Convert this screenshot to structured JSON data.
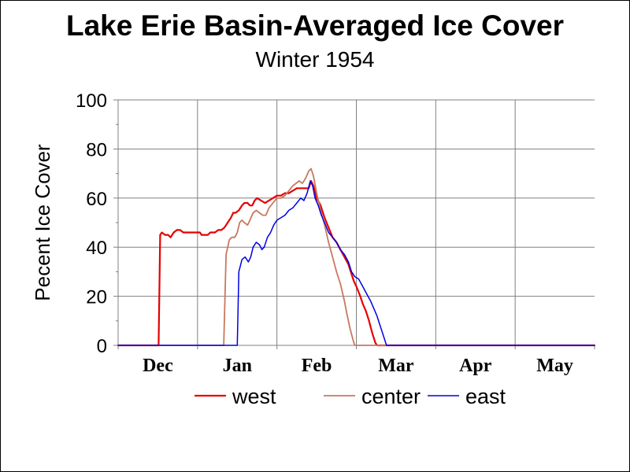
{
  "chart_data": {
    "type": "line",
    "title": "Lake Erie Basin-Averaged Ice Cover",
    "subtitle": "Winter 1954",
    "xlabel": "",
    "ylabel": "Pecent Ice Cover",
    "ylim": [
      0,
      100
    ],
    "yticks": [
      "0",
      "20",
      "40",
      "60",
      "80",
      "100"
    ],
    "x_unit": "months from Dec 1 (tick at start of each month)",
    "xlim": [
      -0.5,
      5.5
    ],
    "xticks": [
      {
        "value": 0,
        "label": "Dec"
      },
      {
        "value": 1,
        "label": "Jan"
      },
      {
        "value": 2,
        "label": "Feb"
      },
      {
        "value": 3,
        "label": "Mar"
      },
      {
        "value": 4,
        "label": "Apr"
      },
      {
        "value": 5,
        "label": "May"
      }
    ],
    "grid": true,
    "legend": "bottom",
    "series": [
      {
        "name": "west",
        "color": "#e60000",
        "width": 2.2,
        "points": [
          [
            -0.5,
            0
          ],
          [
            0.01,
            0
          ],
          [
            0.03,
            45
          ],
          [
            0.05,
            46
          ],
          [
            0.09,
            45
          ],
          [
            0.13,
            45
          ],
          [
            0.16,
            44
          ],
          [
            0.2,
            46
          ],
          [
            0.24,
            47
          ],
          [
            0.28,
            47
          ],
          [
            0.32,
            46
          ],
          [
            0.4,
            46
          ],
          [
            0.5,
            46
          ],
          [
            0.53,
            46
          ],
          [
            0.55,
            45
          ],
          [
            0.6,
            45
          ],
          [
            0.63,
            45
          ],
          [
            0.66,
            46
          ],
          [
            0.72,
            46
          ],
          [
            0.76,
            47
          ],
          [
            0.8,
            47
          ],
          [
            0.84,
            48
          ],
          [
            0.88,
            50
          ],
          [
            0.92,
            52
          ],
          [
            0.95,
            54
          ],
          [
            0.98,
            54
          ],
          [
            1.02,
            55
          ],
          [
            1.06,
            57
          ],
          [
            1.09,
            58
          ],
          [
            1.13,
            58
          ],
          [
            1.16,
            57
          ],
          [
            1.19,
            57
          ],
          [
            1.22,
            59
          ],
          [
            1.25,
            60
          ],
          [
            1.3,
            59
          ],
          [
            1.35,
            58
          ],
          [
            1.4,
            59
          ],
          [
            1.45,
            60
          ],
          [
            1.5,
            61
          ],
          [
            1.55,
            61
          ],
          [
            1.6,
            62
          ],
          [
            1.65,
            62
          ],
          [
            1.7,
            63
          ],
          [
            1.75,
            64
          ],
          [
            1.8,
            64
          ],
          [
            1.85,
            64
          ],
          [
            1.9,
            64
          ],
          [
            1.93,
            67
          ],
          [
            1.96,
            65
          ],
          [
            2.0,
            60
          ],
          [
            2.05,
            57
          ],
          [
            2.1,
            52
          ],
          [
            2.15,
            48
          ],
          [
            2.2,
            44
          ],
          [
            2.25,
            42
          ],
          [
            2.3,
            39
          ],
          [
            2.35,
            36
          ],
          [
            2.4,
            33
          ],
          [
            2.43,
            30
          ],
          [
            2.47,
            26
          ],
          [
            2.5,
            24
          ],
          [
            2.55,
            20
          ],
          [
            2.58,
            17
          ],
          [
            2.62,
            14
          ],
          [
            2.66,
            10
          ],
          [
            2.7,
            5
          ],
          [
            2.74,
            1
          ],
          [
            2.76,
            0
          ],
          [
            5.5,
            0
          ]
        ]
      },
      {
        "name": "center",
        "color": "#c87860",
        "width": 1.8,
        "points": [
          [
            -0.5,
            0
          ],
          [
            0.8,
            0
          ],
          [
            0.83,
            0
          ],
          [
            0.86,
            37
          ],
          [
            0.9,
            43
          ],
          [
            0.93,
            44
          ],
          [
            0.97,
            44
          ],
          [
            1.0,
            46
          ],
          [
            1.03,
            50
          ],
          [
            1.06,
            51
          ],
          [
            1.09,
            50
          ],
          [
            1.13,
            49
          ],
          [
            1.16,
            51
          ],
          [
            1.2,
            54
          ],
          [
            1.24,
            55
          ],
          [
            1.28,
            54
          ],
          [
            1.32,
            53
          ],
          [
            1.36,
            53
          ],
          [
            1.4,
            56
          ],
          [
            1.45,
            58
          ],
          [
            1.5,
            60
          ],
          [
            1.55,
            60
          ],
          [
            1.6,
            61
          ],
          [
            1.65,
            63
          ],
          [
            1.7,
            65
          ],
          [
            1.74,
            66
          ],
          [
            1.78,
            67
          ],
          [
            1.82,
            66
          ],
          [
            1.86,
            68
          ],
          [
            1.9,
            71
          ],
          [
            1.93,
            72
          ],
          [
            1.96,
            69
          ],
          [
            2.0,
            62
          ],
          [
            2.05,
            55
          ],
          [
            2.1,
            49
          ],
          [
            2.15,
            42
          ],
          [
            2.2,
            36
          ],
          [
            2.25,
            30
          ],
          [
            2.3,
            25
          ],
          [
            2.35,
            18
          ],
          [
            2.38,
            13
          ],
          [
            2.42,
            7
          ],
          [
            2.46,
            2
          ],
          [
            2.48,
            0
          ],
          [
            5.5,
            0
          ]
        ]
      },
      {
        "name": "east",
        "color": "#0000e6",
        "width": 1.5,
        "points": [
          [
            -0.5,
            0
          ],
          [
            0.98,
            0
          ],
          [
            1.0,
            0
          ],
          [
            1.02,
            30
          ],
          [
            1.06,
            35
          ],
          [
            1.1,
            36
          ],
          [
            1.14,
            34
          ],
          [
            1.17,
            36
          ],
          [
            1.2,
            40
          ],
          [
            1.24,
            42
          ],
          [
            1.28,
            41
          ],
          [
            1.31,
            39
          ],
          [
            1.34,
            40
          ],
          [
            1.38,
            44
          ],
          [
            1.42,
            46
          ],
          [
            1.46,
            49
          ],
          [
            1.5,
            51
          ],
          [
            1.55,
            52
          ],
          [
            1.6,
            53
          ],
          [
            1.65,
            55
          ],
          [
            1.7,
            56
          ],
          [
            1.75,
            58
          ],
          [
            1.8,
            60
          ],
          [
            1.84,
            59
          ],
          [
            1.88,
            62
          ],
          [
            1.92,
            67
          ],
          [
            1.95,
            65
          ],
          [
            1.98,
            60
          ],
          [
            2.02,
            57
          ],
          [
            2.06,
            53
          ],
          [
            2.1,
            50
          ],
          [
            2.15,
            46
          ],
          [
            2.2,
            44
          ],
          [
            2.25,
            42
          ],
          [
            2.3,
            39
          ],
          [
            2.35,
            37
          ],
          [
            2.4,
            34
          ],
          [
            2.44,
            30
          ],
          [
            2.48,
            28
          ],
          [
            2.53,
            27
          ],
          [
            2.58,
            24
          ],
          [
            2.63,
            21
          ],
          [
            2.68,
            18
          ],
          [
            2.72,
            15
          ],
          [
            2.76,
            12
          ],
          [
            2.8,
            8
          ],
          [
            2.85,
            3
          ],
          [
            2.88,
            0
          ],
          [
            5.5,
            0
          ]
        ]
      }
    ]
  }
}
